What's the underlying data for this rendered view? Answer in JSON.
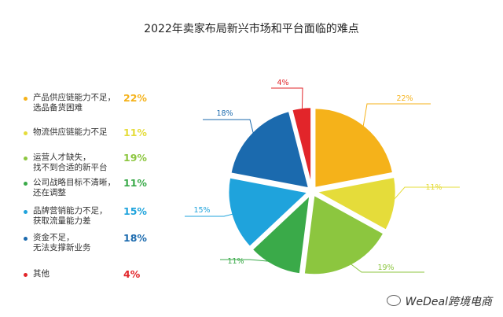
{
  "chart_data": {
    "type": "pie",
    "title": "2022年卖家布局新兴市场和平台面临的难点",
    "legend_position": "left",
    "slices": [
      {
        "label": "产品供应链能力不足，\n选品备货困难",
        "value": 22,
        "display": "22%",
        "color": "#F5B21A"
      },
      {
        "label": "物流供应链能力不足",
        "value": 11,
        "display": "11%",
        "color": "#E5DC3A"
      },
      {
        "label": "运营人才缺失，\n找不到合适的新平台",
        "value": 19,
        "display": "19%",
        "color": "#8CC63F"
      },
      {
        "label": "公司战略目标不清晰，\n还在调整",
        "value": 11,
        "display": "11%",
        "color": "#3AAA49"
      },
      {
        "label": "品牌营销能力不足，\n获取流量能力差",
        "value": 15,
        "display": "15%",
        "color": "#1FA3DC"
      },
      {
        "label": "资金不足，\n无法支撑新业务",
        "value": 18,
        "display": "18%",
        "color": "#1B6AAE"
      },
      {
        "label": "其他",
        "value": 4,
        "display": "4%",
        "color": "#E2252A"
      }
    ]
  },
  "watermark": "WeDeal跨境电商"
}
